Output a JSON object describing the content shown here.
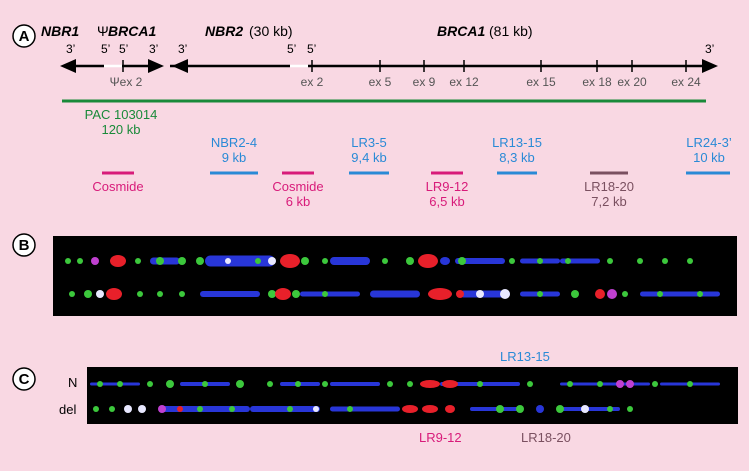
{
  "panels": {
    "a": "A",
    "b": "B",
    "c": "C"
  },
  "genes": {
    "nbr1": "NBR1",
    "psi_brca1_psi": "Ψ",
    "psi_brca1_name": "BRCA1",
    "nbr2_name": "NBR2",
    "nbr2_size": "(30 kb)",
    "brca1_name": "BRCA1",
    "brca1_size": "(81 kb)"
  },
  "ends": [
    "3’",
    "5’",
    "5’",
    "3’",
    "3’",
    "5’",
    "5’",
    "3’"
  ],
  "exons": [
    "Ψex 2",
    "ex 2",
    "ex 5",
    "ex 9",
    "ex 12",
    "ex 15",
    "ex 18",
    "ex 20",
    "ex 24"
  ],
  "pac": {
    "name": "PAC 103014",
    "size": "120 kb",
    "color": "#1a8a3a"
  },
  "probes": [
    {
      "name": "Cosmide",
      "size": "",
      "color": "#d81b7a"
    },
    {
      "name": "NBR2-4",
      "size": "9 kb",
      "color": "#2a8ad6"
    },
    {
      "name": "Cosmide",
      "size": "6 kb",
      "color": "#d81b7a"
    },
    {
      "name": "LR3-5",
      "size": "9,4 kb",
      "color": "#2a8ad6"
    },
    {
      "name": "LR9-12",
      "size": "6,5 kb",
      "color": "#d81b7a"
    },
    {
      "name": "LR13-15",
      "size": "8,3 kb",
      "color": "#2a8ad6"
    },
    {
      "name": "LR18-20",
      "size": "7,2 kb",
      "color": "#7a5060"
    },
    {
      "name": "LR24-3’",
      "size": "10 kb",
      "color": "#2a8ad6"
    }
  ],
  "panel_c": {
    "row_normal": "N",
    "row_deletion": "del",
    "label_lr13_15": "LR13-15",
    "label_lr9_12": "LR9-12",
    "label_lr18_20": "LR18-20"
  },
  "colors": {
    "background": "#f9d8e3",
    "fiber_red": "#e8202a",
    "fiber_green": "#3cc83c",
    "fiber_blue": "#2836d8"
  }
}
